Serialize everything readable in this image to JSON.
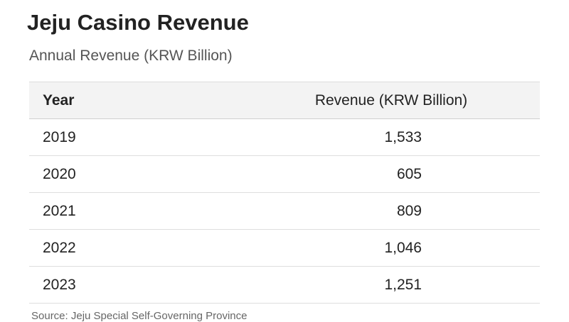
{
  "title": "Jeju Casino Revenue",
  "subtitle": "Annual Revenue (KRW Billion)",
  "table": {
    "headers": [
      "Year",
      "Revenue (KRW Billion)"
    ],
    "rows": [
      [
        "2019",
        "1,533"
      ],
      [
        "2020",
        "605"
      ],
      [
        "2021",
        "809"
      ],
      [
        "2022",
        "1,046"
      ],
      [
        "2023",
        "1,251"
      ]
    ]
  },
  "source": "Source: Jeju Special Self-Governing Province",
  "chart_data": {
    "type": "table",
    "title": "Jeju Casino Revenue",
    "subtitle": "Annual Revenue (KRW Billion)",
    "columns": [
      "Year",
      "Revenue (KRW Billion)"
    ],
    "categories": [
      "2019",
      "2020",
      "2021",
      "2022",
      "2023"
    ],
    "values": [
      1533,
      605,
      809,
      1046,
      1251
    ]
  }
}
